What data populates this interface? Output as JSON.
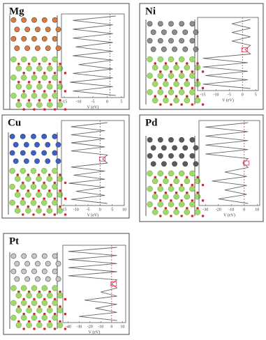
{
  "chart_data": [
    {
      "type": "line",
      "title": "Mg",
      "x_label": "V (eV)",
      "xlim": [
        -16,
        6
      ],
      "xticks": [
        -15,
        -10,
        -5,
        0,
        5
      ],
      "color": "#666666",
      "ref_line": 1,
      "ref_color": "#e0304a",
      "atom_color": "#e07a3a",
      "values": [
        3,
        -12,
        2,
        -12,
        2,
        -12,
        2,
        -11,
        2,
        -12,
        2,
        -10,
        2,
        -12,
        2,
        -13,
        2,
        -12,
        3
      ]
    },
    {
      "type": "line",
      "title": "Ni",
      "x_label": "V (eV)",
      "xlim": [
        -17,
        6
      ],
      "xticks": [
        -15,
        -10,
        -5,
        0,
        5
      ],
      "color": "#666666",
      "ref_line": 0,
      "ref_color": "#e0304a",
      "atom_color": "#8a8f96",
      "values": [
        3,
        -4,
        3,
        -4,
        3,
        -4,
        3,
        1,
        3,
        -15,
        2,
        -15,
        2,
        -14,
        2,
        -15,
        3
      ]
    },
    {
      "type": "line",
      "title": "Cu",
      "x_label": "V (eV)",
      "xlim": [
        -16,
        10
      ],
      "xticks": [
        -15,
        -10,
        -5,
        0,
        5,
        10
      ],
      "color": "#666666",
      "ref_line": 0,
      "ref_color": "#e0304a",
      "atom_color": "#3a5fd0",
      "values": [
        3,
        -12,
        2,
        -12,
        2,
        -12,
        2,
        -12,
        3,
        1,
        3,
        -12,
        2,
        -11,
        2,
        -13,
        2,
        -10,
        2,
        -12,
        3
      ]
    },
    {
      "type": "line",
      "title": "Pd",
      "x_label": "V (eV)",
      "xlim": [
        -35,
        12
      ],
      "xticks": [
        -30,
        -20,
        -10,
        0,
        10
      ],
      "color": "#666666",
      "ref_line": 0,
      "ref_color": "#e0304a",
      "atom_color": "#5a5a5a",
      "values": [
        3,
        -30,
        3,
        -30,
        3,
        -30,
        3,
        -30,
        3,
        -1,
        3,
        -15,
        2,
        -25,
        2,
        -15,
        2,
        -20,
        3
      ]
    },
    {
      "type": "line",
      "title": "Pt",
      "x_label": "V (eV)",
      "xlim": [
        -45,
        13
      ],
      "xticks": [
        -40,
        -30,
        -20,
        -10,
        0,
        10
      ],
      "color": "#666666",
      "ref_line": 0,
      "ref_color": "#e0304a",
      "atom_color": "#c8c8c8",
      "values": [
        5,
        -40,
        5,
        -40,
        5,
        -40,
        5,
        -40,
        5,
        0,
        5,
        -10,
        5,
        -25,
        5,
        -15,
        5,
        -30,
        5
      ]
    }
  ]
}
